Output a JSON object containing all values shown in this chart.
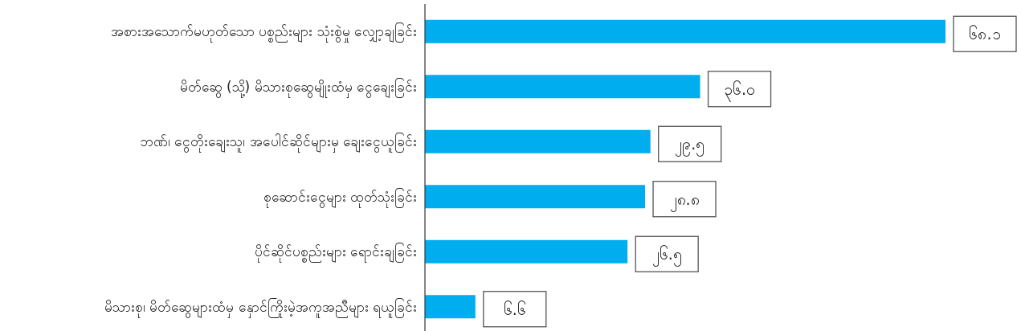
{
  "chart_data": {
    "type": "bar",
    "orientation": "horizontal",
    "categories": [
      "အစားအသောက်မဟုတ်သော ပစ္စည်းများ သုံးစွဲမှု လျှော့ချခြင်း",
      "မိတ်ဆွေ (သို့) မိသားစုဆွေမျိုးထံမှ ငွေချေးခြင်း",
      "ဘဏ်၊ ငွေတိုးချေးသူ၊ အပေါင်ဆိုင်များမှ ချေးငွေယူခြင်း",
      "စုဆောင်းငွေများ ထုတ်သုံးခြင်း",
      "ပိုင်ဆိုင်ပစ္စည်းများ ရောင်းချခြင်း",
      "မိသားစု၊ မိတ်ဆွေများထံမှ နှောင်ကြိုးမဲ့အကူအညီများ ရယူခြင်း"
    ],
    "values": [
      68.1,
      36.0,
      29.5,
      28.8,
      26.5,
      6.6
    ],
    "value_labels": [
      "၆၈.၁",
      "၃၆.၀",
      "၂၉.၅",
      "၂၈.၈",
      "၂၆.၅",
      "၆.၆"
    ],
    "color": "#00aeef"
  }
}
